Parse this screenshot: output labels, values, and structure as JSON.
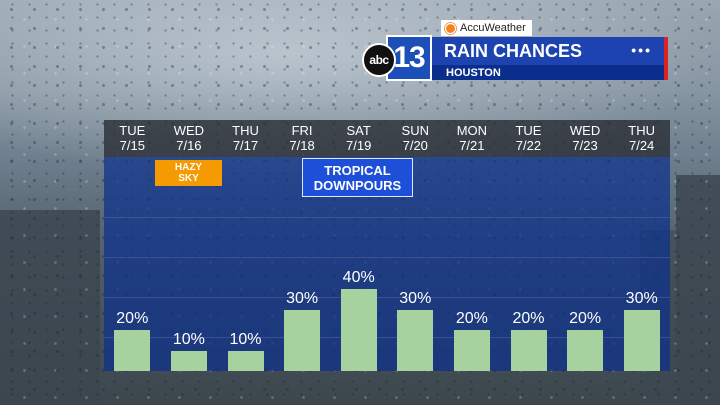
{
  "header": {
    "sponsor": "AccuWeather",
    "station_logo_abc": "abc",
    "station_logo_number": "13",
    "title": "RAIN CHANCES",
    "subtitle": "HOUSTON",
    "menu_icon": "dots-icon"
  },
  "annotations": {
    "hazy_line1": "HAZY",
    "hazy_line2": "SKY",
    "tropical_line1": "TROPICAL",
    "tropical_line2": "DOWNPOURS"
  },
  "colors": {
    "bar": "#a6d2a0",
    "plot_bg": "#0c308c",
    "title_bar": "#1c43b0",
    "hazy_tag": "#f59a00",
    "tropical_tag": "#1d4fd8"
  },
  "chart_data": {
    "type": "bar",
    "title": "RAIN CHANCES",
    "subtitle": "HOUSTON",
    "categories": [
      {
        "day": "TUE",
        "date": "7/15"
      },
      {
        "day": "WED",
        "date": "7/16"
      },
      {
        "day": "THU",
        "date": "7/17"
      },
      {
        "day": "FRI",
        "date": "7/18"
      },
      {
        "day": "SAT",
        "date": "7/19"
      },
      {
        "day": "SUN",
        "date": "7/20"
      },
      {
        "day": "MON",
        "date": "7/21"
      },
      {
        "day": "TUE",
        "date": "7/22"
      },
      {
        "day": "WED",
        "date": "7/23"
      },
      {
        "day": "THU",
        "date": "7/24"
      }
    ],
    "values": [
      20,
      10,
      10,
      30,
      40,
      30,
      20,
      20,
      20,
      30
    ],
    "labels": [
      "20%",
      "10%",
      "10%",
      "30%",
      "40%",
      "30%",
      "20%",
      "20%",
      "20%",
      "30%"
    ],
    "unit": "%",
    "ylim": [
      0,
      100
    ],
    "grid": true
  }
}
